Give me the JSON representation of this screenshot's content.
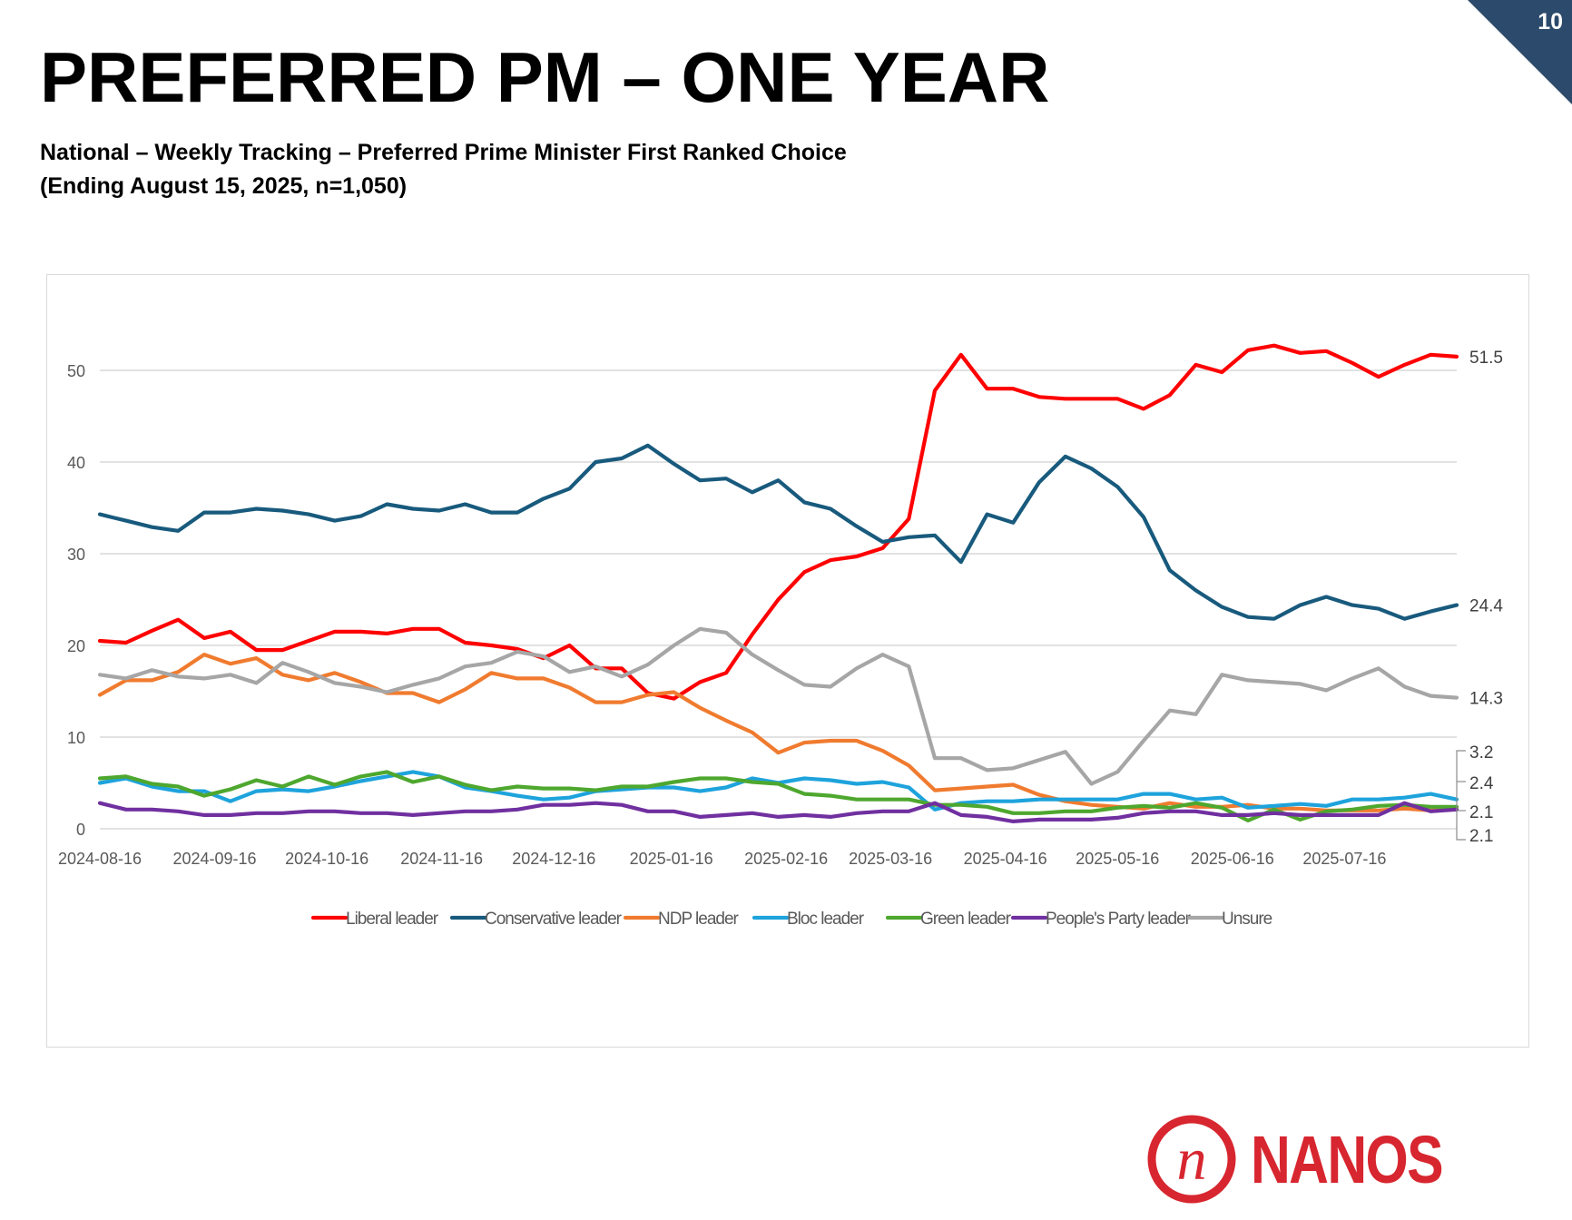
{
  "page": {
    "number": "10",
    "title": "PREFERRED PM – ONE YEAR",
    "subtitle_line1": "National – Weekly Tracking – Preferred Prime Minister First Ranked Choice",
    "subtitle_line2": "(Ending August 15, 2025, n=1,050)",
    "logo_text": "NANOS",
    "logo_mark": "n"
  },
  "chart_data": {
    "type": "line",
    "title": "",
    "xlabel": "",
    "ylabel": "",
    "ylim": [
      0,
      55
    ],
    "yticks": [
      0,
      10,
      20,
      30,
      40,
      50
    ],
    "grid": true,
    "legend_position": "bottom",
    "x_tick_labels": [
      "2024-08-16",
      "2024-09-16",
      "2024-10-16",
      "2024-11-16",
      "2024-12-16",
      "2025-01-16",
      "2025-02-16",
      "2025-03-16",
      "2025-04-16",
      "2025-05-16",
      "2025-06-16",
      "2025-07-16"
    ],
    "x_tick_index": [
      0,
      4.4,
      8.7,
      13.1,
      17.4,
      21.9,
      26.3,
      30.3,
      34.7,
      39.0,
      43.4,
      47.7
    ],
    "point_count": 53,
    "end_labels": [
      "51.5",
      "24.4",
      "14.3",
      "3.2",
      "2.4",
      "2.1",
      "2.1"
    ],
    "series": [
      {
        "name": "Liberal leader",
        "color": "#ff0000",
        "values": [
          20.5,
          20.3,
          21.6,
          22.8,
          20.8,
          21.5,
          19.5,
          19.5,
          20.5,
          21.5,
          21.5,
          21.3,
          21.8,
          21.8,
          20.3,
          20.0,
          19.6,
          18.6,
          20.0,
          17.5,
          17.5,
          14.8,
          14.2,
          16.0,
          17.0,
          21.2,
          25.0,
          28.0,
          29.3,
          29.7,
          30.6,
          33.8,
          47.8,
          51.7,
          48.0,
          48.0,
          47.1,
          46.9,
          46.9,
          46.9,
          45.8,
          47.3,
          50.6,
          49.8,
          52.2,
          52.7,
          51.9,
          52.1,
          50.8,
          49.3,
          50.6,
          51.7,
          51.5
        ]
      },
      {
        "name": "Conservative leader",
        "color": "#185a7d",
        "values": [
          34.3,
          33.6,
          32.9,
          32.5,
          34.5,
          34.5,
          34.9,
          34.7,
          34.3,
          33.6,
          34.1,
          35.4,
          34.9,
          34.7,
          35.4,
          34.5,
          34.5,
          36.0,
          37.1,
          40.0,
          40.4,
          41.8,
          39.8,
          38.0,
          38.2,
          36.7,
          38.0,
          35.6,
          34.9,
          33.0,
          31.3,
          31.8,
          32.0,
          29.1,
          34.3,
          33.4,
          37.8,
          40.6,
          39.3,
          37.3,
          34.0,
          28.2,
          26.0,
          24.2,
          23.1,
          22.9,
          24.4,
          25.3,
          24.4,
          24.0,
          22.9,
          23.7,
          24.4
        ]
      },
      {
        "name": "NDP leader",
        "color": "#f07b2f",
        "values": [
          14.6,
          16.2,
          16.2,
          17.1,
          19.0,
          18.0,
          18.6,
          16.8,
          16.2,
          17.0,
          16.0,
          14.8,
          14.8,
          13.8,
          15.2,
          17.0,
          16.4,
          16.4,
          15.4,
          13.8,
          13.8,
          14.6,
          14.9,
          13.2,
          11.8,
          10.5,
          8.3,
          9.4,
          9.6,
          9.6,
          8.5,
          6.9,
          4.2,
          4.4,
          4.6,
          4.8,
          3.7,
          3.0,
          2.6,
          2.4,
          2.2,
          2.8,
          2.4,
          2.4,
          2.6,
          2.2,
          2.2,
          2.0,
          2.0,
          2.0,
          2.2,
          2.0,
          2.1
        ]
      },
      {
        "name": "Bloc leader",
        "color": "#1ea3dc",
        "values": [
          5.0,
          5.5,
          4.6,
          4.1,
          4.1,
          3.0,
          4.1,
          4.3,
          4.1,
          4.6,
          5.2,
          5.7,
          6.2,
          5.7,
          4.5,
          4.1,
          3.6,
          3.2,
          3.4,
          4.1,
          4.3,
          4.5,
          4.5,
          4.1,
          4.5,
          5.5,
          5.0,
          5.5,
          5.3,
          4.9,
          5.1,
          4.5,
          2.1,
          2.8,
          3.0,
          3.0,
          3.2,
          3.2,
          3.2,
          3.2,
          3.8,
          3.8,
          3.2,
          3.4,
          2.3,
          2.5,
          2.7,
          2.5,
          3.2,
          3.2,
          3.4,
          3.8,
          3.2
        ]
      },
      {
        "name": "Green leader",
        "color": "#4ea72e",
        "values": [
          5.5,
          5.7,
          4.9,
          4.6,
          3.6,
          4.3,
          5.3,
          4.6,
          5.7,
          4.8,
          5.7,
          6.2,
          5.1,
          5.7,
          4.8,
          4.2,
          4.6,
          4.4,
          4.4,
          4.2,
          4.6,
          4.6,
          5.1,
          5.5,
          5.5,
          5.1,
          4.9,
          3.8,
          3.6,
          3.2,
          3.2,
          3.2,
          2.6,
          2.6,
          2.4,
          1.7,
          1.7,
          1.9,
          1.9,
          2.3,
          2.5,
          2.3,
          2.8,
          2.3,
          0.9,
          2.1,
          1.0,
          1.9,
          2.1,
          2.5,
          2.6,
          2.4,
          2.4
        ]
      },
      {
        "name": "People's Party leader",
        "color": "#7030a0",
        "values": [
          2.8,
          2.1,
          2.1,
          1.9,
          1.5,
          1.5,
          1.7,
          1.7,
          1.9,
          1.9,
          1.7,
          1.7,
          1.5,
          1.7,
          1.9,
          1.9,
          2.1,
          2.6,
          2.6,
          2.8,
          2.6,
          1.9,
          1.9,
          1.3,
          1.5,
          1.7,
          1.3,
          1.5,
          1.3,
          1.7,
          1.9,
          1.9,
          2.8,
          1.5,
          1.3,
          0.8,
          1.0,
          1.0,
          1.0,
          1.2,
          1.7,
          1.9,
          1.9,
          1.5,
          1.5,
          1.7,
          1.5,
          1.5,
          1.5,
          1.5,
          2.8,
          1.9,
          2.1
        ]
      },
      {
        "name": "Unsure",
        "color": "#a6a6a6",
        "values": [
          16.8,
          16.4,
          17.3,
          16.6,
          16.4,
          16.8,
          15.9,
          18.1,
          17.1,
          15.9,
          15.5,
          14.9,
          15.7,
          16.4,
          17.7,
          18.1,
          19.3,
          18.8,
          17.1,
          17.7,
          16.6,
          17.9,
          20.0,
          21.8,
          21.4,
          19.0,
          17.3,
          15.7,
          15.5,
          17.5,
          19.0,
          17.7,
          7.7,
          7.7,
          6.4,
          6.6,
          7.5,
          8.4,
          4.9,
          6.2,
          9.6,
          12.9,
          12.5,
          16.8,
          16.2,
          16.0,
          15.8,
          15.1,
          16.4,
          17.5,
          15.5,
          14.5,
          14.3
        ]
      }
    ]
  }
}
